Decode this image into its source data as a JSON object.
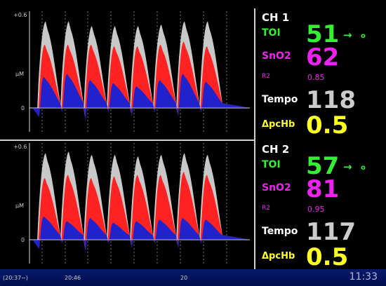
{
  "colors": {
    "toi": "#33ee33",
    "sno2": "#ee22ee",
    "tempo": "#cccccc",
    "dpchb": "#ffff22",
    "total": "#c8c8c8",
    "red": "#ff2222",
    "blue": "#2222cc"
  },
  "chart_data": [
    {
      "type": "area",
      "title": "",
      "ylabel": "μM",
      "y_ticks": [
        "+0.6",
        "0"
      ],
      "ylim": [
        -0.15,
        0.65
      ],
      "series": [
        {
          "name": "",
          "color": "#c8c8c8",
          "peaks": [
            0.56,
            0.56,
            0.53,
            0.53,
            0.53,
            0.54,
            0.56,
            0.56
          ]
        },
        {
          "name": "",
          "color": "#ff2222",
          "peaks": [
            0.41,
            0.41,
            0.41,
            0.4,
            0.4,
            0.41,
            0.43,
            0.4
          ]
        },
        {
          "name": "",
          "color": "#2222cc",
          "peaks": [
            0.2,
            0.22,
            0.18,
            0.16,
            0.14,
            0.18,
            0.22,
            0.17
          ]
        }
      ]
    },
    {
      "type": "area",
      "title": "",
      "ylabel": "μM",
      "y_ticks": [
        "+0.6",
        "0"
      ],
      "ylim": [
        -0.15,
        0.65
      ],
      "series": [
        {
          "name": "",
          "color": "#c8c8c8",
          "peaks": [
            0.56,
            0.57,
            0.55,
            0.55,
            0.54,
            0.55,
            0.56,
            0.55
          ]
        },
        {
          "name": "",
          "color": "#ff2222",
          "peaks": [
            0.4,
            0.42,
            0.4,
            0.41,
            0.42,
            0.42,
            0.44,
            0.42
          ]
        },
        {
          "name": "",
          "color": "#2222cc",
          "peaks": [
            0.15,
            0.12,
            0.14,
            0.11,
            0.12,
            0.13,
            0.14,
            0.13
          ]
        }
      ]
    }
  ],
  "channels": [
    {
      "title": "CH 1",
      "toi_label": "TOI",
      "toi": "51",
      "toi_arrow": "→",
      "toi_trend": "o",
      "sno2_label": "SnO2",
      "sno2": "62",
      "r2_label": "R2",
      "r2": "0.85",
      "tempo_label": "Tempo",
      "tempo": "118",
      "dpchb_label": "ΔpcHb",
      "dpchb": "0.5"
    },
    {
      "title": "CH 2",
      "toi_label": "TOI",
      "toi": "57",
      "toi_arrow": "→",
      "toi_trend": "o",
      "sno2_label": "SnO2",
      "sno2": "81",
      "r2_label": "R2",
      "r2": "0.95",
      "tempo_label": "Tempo",
      "tempo": "117",
      "dpchb_label": "ΔpcHb",
      "dpchb": "0.5"
    }
  ],
  "timebar": {
    "start": "(20:37~)",
    "t1": "20:46",
    "t2": "20",
    "clock": "11:33"
  }
}
